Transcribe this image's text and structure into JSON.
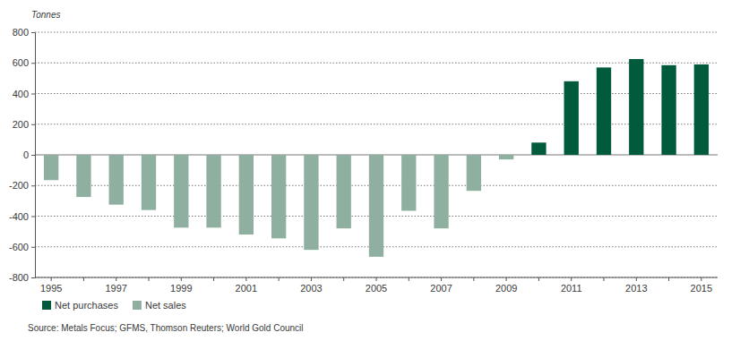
{
  "chart_data": {
    "type": "bar",
    "y_label": "Tonnes",
    "categories": [
      "1995",
      null,
      "1997",
      null,
      "1999",
      null,
      "2001",
      null,
      "2003",
      null,
      "2005",
      null,
      "2007",
      null,
      "2009",
      null,
      "2011",
      null,
      "2013",
      null,
      "2015"
    ],
    "series": [
      {
        "name": "Net purchases",
        "color": "#005a3c",
        "values": [
          null,
          null,
          null,
          null,
          null,
          null,
          null,
          null,
          null,
          null,
          null,
          null,
          null,
          null,
          null,
          80,
          480,
          570,
          625,
          585,
          590
        ]
      },
      {
        "name": "Net sales",
        "color": "#8fb0a0",
        "values": [
          -165,
          -275,
          -325,
          -360,
          -475,
          -475,
          -520,
          -545,
          -620,
          -480,
          -665,
          -365,
          -480,
          -235,
          -30,
          null,
          null,
          null,
          null,
          null,
          null
        ]
      }
    ],
    "ylim": [
      -800,
      800
    ],
    "yticks": [
      -800,
      -600,
      -400,
      -200,
      0,
      200,
      400,
      600,
      800
    ],
    "grid": true,
    "legend": "bottom",
    "annotations": [
      "Source: Metals Focus; GFMS, Thomson Reuters; World Gold Council"
    ]
  }
}
